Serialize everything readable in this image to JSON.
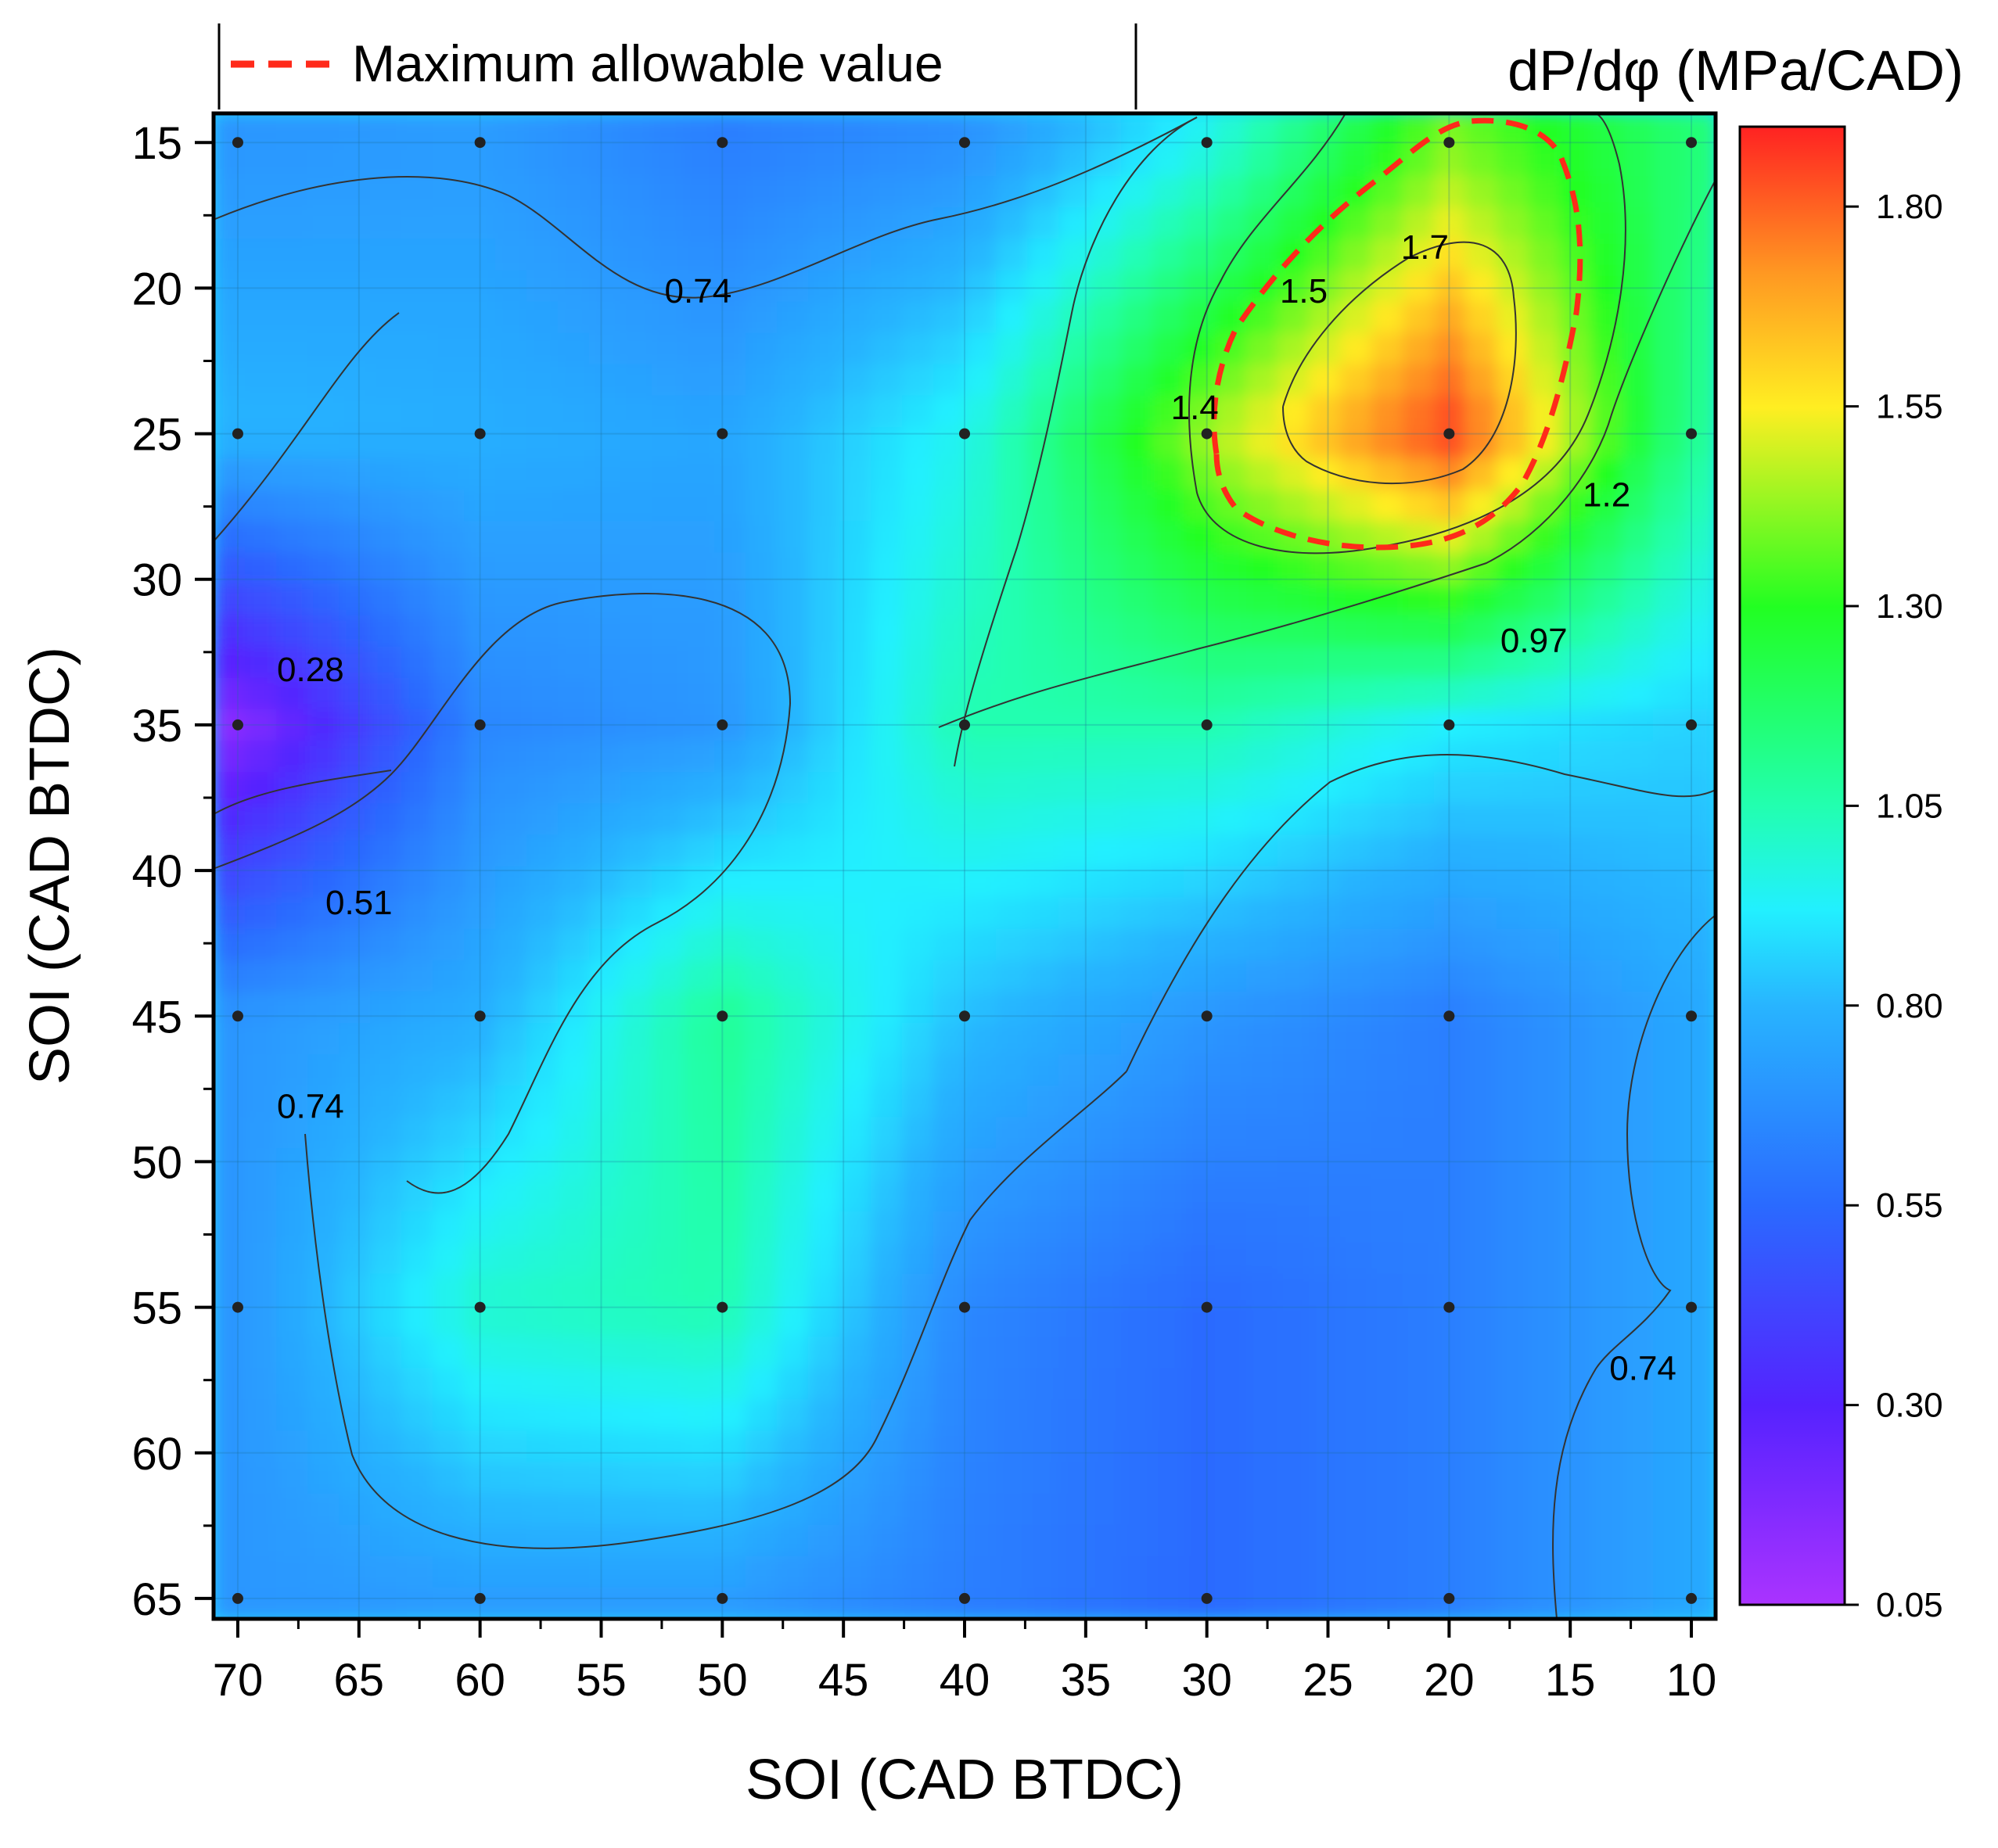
{
  "chart_data": {
    "type": "contour",
    "title": "",
    "xlabel": "SOI (CAD BTDC)",
    "ylabel": "SOI (CAD BTDC)",
    "x_reversed": true,
    "y_reversed": true,
    "xlim": [
      71,
      9
    ],
    "ylim": [
      14,
      65.7
    ],
    "x_ticks": [
      70,
      65,
      60,
      55,
      50,
      45,
      40,
      35,
      30,
      25,
      20,
      15,
      10
    ],
    "y_ticks": [
      15,
      20,
      25,
      30,
      35,
      40,
      45,
      50,
      55,
      60,
      65
    ],
    "x_grid": [
      70,
      60,
      50,
      40,
      30,
      20,
      10
    ],
    "y_grid": [
      15,
      25,
      35,
      45,
      55,
      65
    ],
    "values": [
      [
        0.7,
        0.72,
        0.62,
        0.68,
        0.95,
        1.4,
        1.15
      ],
      [
        0.8,
        0.78,
        0.75,
        0.95,
        1.45,
        1.85,
        1.1
      ],
      [
        0.15,
        0.65,
        0.7,
        1.05,
        1.05,
        0.92,
        0.86
      ],
      [
        0.7,
        0.78,
        1.1,
        0.82,
        0.7,
        0.62,
        0.76
      ],
      [
        0.7,
        1.0,
        1.05,
        0.65,
        0.55,
        0.62,
        0.76
      ],
      [
        0.7,
        0.72,
        0.72,
        0.62,
        0.55,
        0.62,
        0.76
      ]
    ],
    "contour_labels": [
      {
        "text": "0.74",
        "x": 51,
        "y": 20.5
      },
      {
        "text": "0.28",
        "x": 67,
        "y": 33.5
      },
      {
        "text": "0.51",
        "x": 65,
        "y": 41.5
      },
      {
        "text": "0.74",
        "x": 67,
        "y": 48.5
      },
      {
        "text": "0.74",
        "x": 12,
        "y": 57.5
      },
      {
        "text": "1.4",
        "x": 30.5,
        "y": 24.5
      },
      {
        "text": "1.5",
        "x": 26,
        "y": 20.5
      },
      {
        "text": "1.7",
        "x": 21,
        "y": 19
      },
      {
        "text": "1.2",
        "x": 13.5,
        "y": 27.5
      },
      {
        "text": "0.97",
        "x": 16.5,
        "y": 32.5
      }
    ],
    "colorbar": {
      "title": "dP/dφ (MPa/CAD)",
      "min": 0.05,
      "max": 1.9,
      "ticks": [
        "1.80",
        "1.55",
        "1.30",
        "1.05",
        "0.80",
        "0.55",
        "0.30",
        "0.05"
      ]
    },
    "legend": {
      "label": "Maximum allowable value",
      "style": "red dashed line",
      "position": "top-left, outside plot"
    }
  },
  "colors": {
    "limit_line": "#ff2a1a",
    "contour_line": "#333333",
    "marker": "#222222"
  }
}
